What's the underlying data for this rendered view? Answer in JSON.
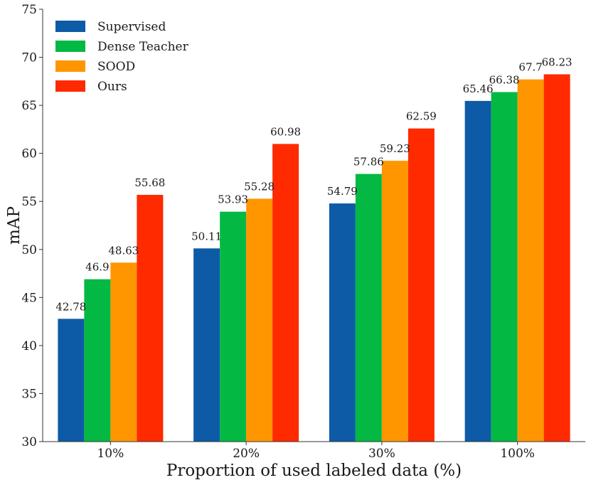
{
  "chart_data": {
    "type": "bar",
    "title": "",
    "xlabel": "Proportion of used labeled data (%)",
    "ylabel": "mAP",
    "ylim": [
      30,
      75
    ],
    "yticks": [
      "30",
      "35",
      "40",
      "45",
      "50",
      "55",
      "60",
      "65",
      "70",
      "75"
    ],
    "categories": [
      "10%",
      "20%",
      "30%",
      "100%"
    ],
    "legend_position": "top-left",
    "series": [
      {
        "name": "Supervised",
        "color": "#0d5ba6",
        "values": [
          42.78,
          50.11,
          54.79,
          65.46
        ],
        "labels": [
          "42.78",
          "50.11",
          "54.79",
          "65.46"
        ]
      },
      {
        "name": "Dense Teacher",
        "color": "#04b943",
        "values": [
          46.9,
          53.93,
          57.86,
          66.38
        ],
        "labels": [
          "46.9",
          "53.93",
          "57.86",
          "66.38"
        ]
      },
      {
        "name": "SOOD",
        "color": "#ff9600",
        "values": [
          48.63,
          55.28,
          59.23,
          67.7
        ],
        "labels": [
          "48.63",
          "55.28",
          "59.23",
          "67.7"
        ]
      },
      {
        "name": "Ours",
        "color": "#ff2a00",
        "values": [
          55.68,
          60.98,
          62.59,
          68.23
        ],
        "labels": [
          "55.68",
          "60.98",
          "62.59",
          "68.23"
        ]
      }
    ]
  }
}
